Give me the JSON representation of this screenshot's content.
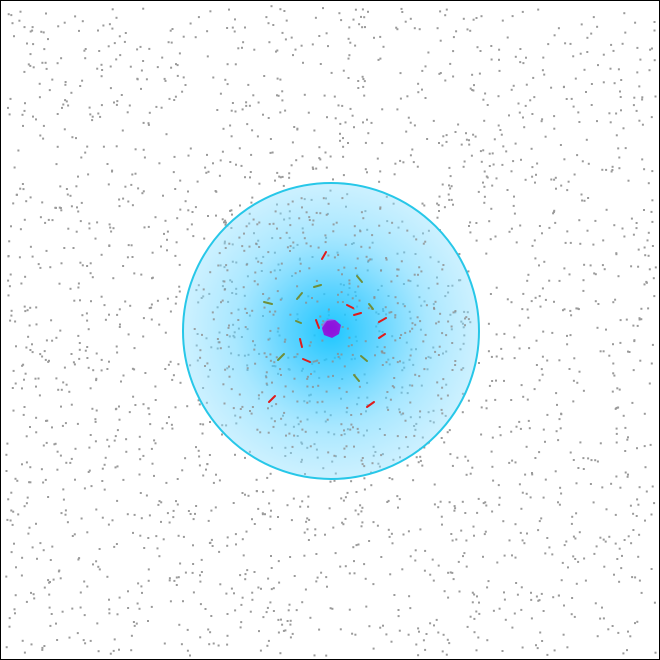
{
  "game": {
    "background_color": "#ffffff",
    "border_color": "#000000",
    "dust_color": "#9a9a9a",
    "field_outline_color": "#27c7e8",
    "field_core_color": "#15c7ff",
    "red_marker_color": "#e01b1b",
    "green_marker_color": "#6f8f3a",
    "nucleus_color": "#9a23d9",
    "nucleus_inner_color": "#7f00ff"
  }
}
